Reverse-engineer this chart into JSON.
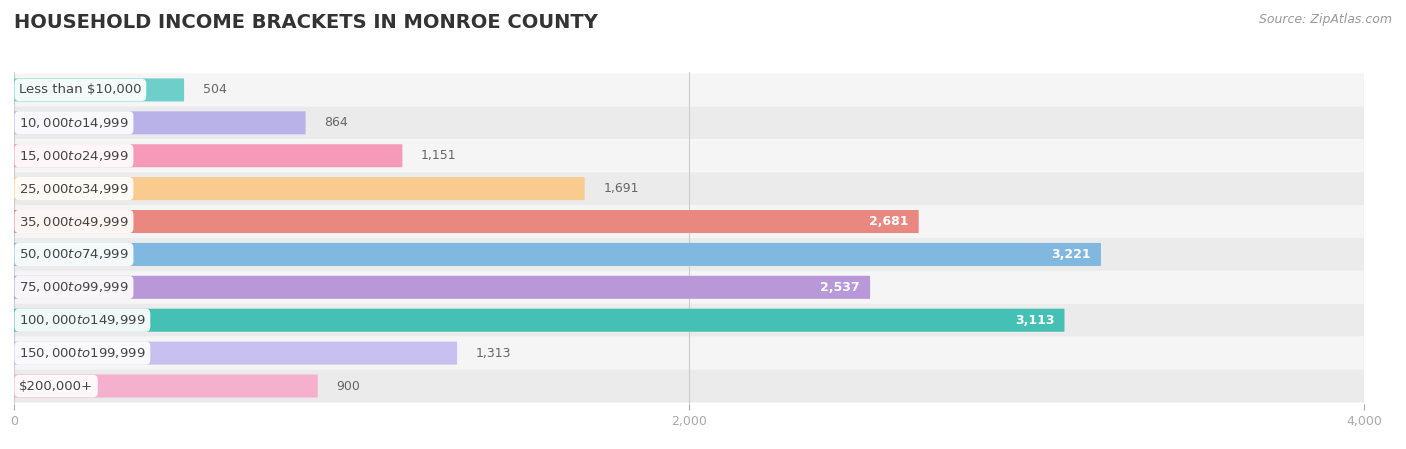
{
  "title": "HOUSEHOLD INCOME BRACKETS IN MONROE COUNTY",
  "source": "Source: ZipAtlas.com",
  "categories": [
    "Less than $10,000",
    "$10,000 to $14,999",
    "$15,000 to $24,999",
    "$25,000 to $34,999",
    "$35,000 to $49,999",
    "$50,000 to $74,999",
    "$75,000 to $99,999",
    "$100,000 to $149,999",
    "$150,000 to $199,999",
    "$200,000+"
  ],
  "values": [
    504,
    864,
    1151,
    1691,
    2681,
    3221,
    2537,
    3113,
    1313,
    900
  ],
  "bar_colors": [
    "#6ecfca",
    "#b8b2e8",
    "#f59ab8",
    "#f9cb8e",
    "#e88880",
    "#80b8e0",
    "#b898d8",
    "#45c0b5",
    "#c8c0ee",
    "#f4b0cc"
  ],
  "row_bg_even": "#f5f5f5",
  "row_bg_odd": "#ebebeb",
  "xlim": [
    0,
    4000
  ],
  "xticks": [
    0,
    2000,
    4000
  ],
  "title_fontsize": 14,
  "label_fontsize": 9.5,
  "value_fontsize": 9,
  "source_fontsize": 9,
  "background_color": "#ffffff",
  "value_threshold": 2000,
  "label_color": "#444444",
  "value_inside_color": "#ffffff",
  "value_outside_color": "#666666"
}
